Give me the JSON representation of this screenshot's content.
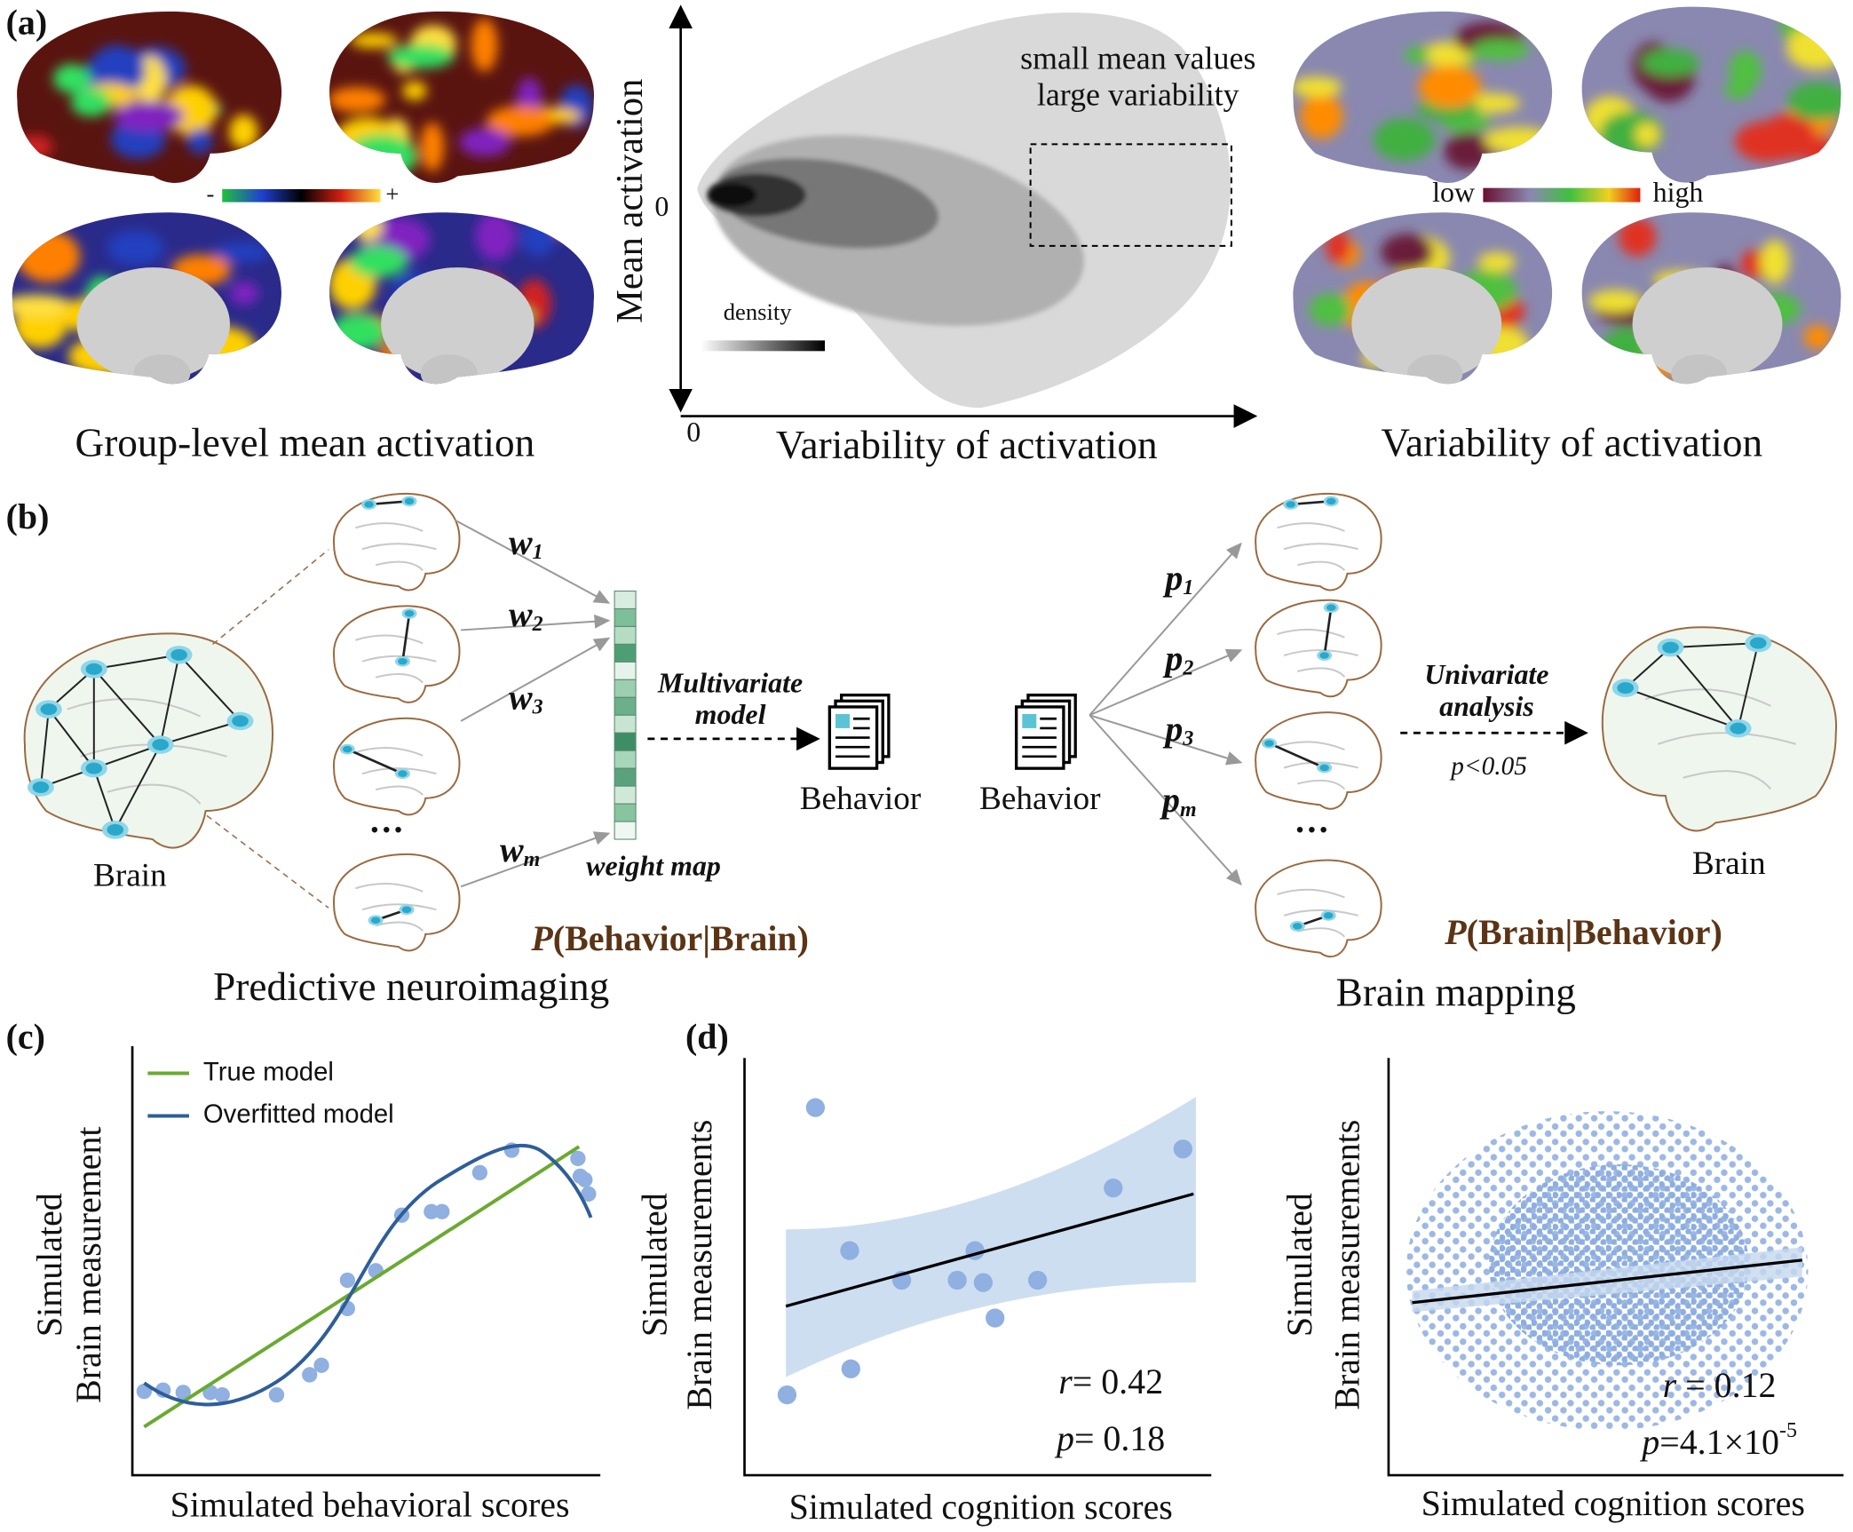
{
  "panel_a": {
    "label": "(a)",
    "mean_map": {
      "caption": "Group-level mean activation",
      "scale_min": "-",
      "scale_max": "+"
    },
    "scatter": {
      "y_label": "Mean activation",
      "x_label": "Variability of activation",
      "y_zero": 0,
      "x_zero": 0,
      "annotation": [
        "small mean values",
        "large variability"
      ],
      "legend": "density"
    },
    "variability_map": {
      "caption": "Variability of activation",
      "scale_min": "low",
      "scale_max": "high"
    }
  },
  "panel_b": {
    "label": "(b)",
    "left": {
      "brain": "Brain",
      "weights": [
        {
          "symbol": "w",
          "sub": "1"
        },
        {
          "symbol": "w",
          "sub": "2"
        },
        {
          "symbol": "w",
          "sub": "3"
        },
        {
          "symbol": "w",
          "sub": "m"
        }
      ],
      "ellipsis": "···",
      "model": [
        "Multivariate",
        "model"
      ],
      "weight_map": "weight map",
      "behavior": "Behavior",
      "formula": {
        "p": "P",
        "args": "(Behavior|Brain)"
      },
      "caption": "Predictive neuroimaging"
    },
    "right": {
      "behavior": "Behavior",
      "weights": [
        {
          "symbol": "p",
          "sub": "1"
        },
        {
          "symbol": "p",
          "sub": "2"
        },
        {
          "symbol": "p",
          "sub": "3"
        },
        {
          "symbol": "p",
          "sub": "m"
        }
      ],
      "ellipsis": "···",
      "analysis": [
        "Univariate",
        "analysis"
      ],
      "threshold": "p<0.05",
      "brain": "Brain",
      "formula": {
        "p": "P",
        "args": "(Brain|Behavior)"
      },
      "caption": "Brain mapping"
    }
  },
  "panel_c": {
    "label": "(c)",
    "legend": [
      "True model",
      "Overfitted model"
    ],
    "y_label": [
      "Simulated",
      "Brain measurement"
    ],
    "x_label": "Simulated behavioral scores"
  },
  "panel_d": {
    "label": "(d)",
    "left": {
      "y_label": [
        "Simulated",
        "Brain measurements"
      ],
      "x_label": "Simulated cognition scores",
      "r_symbol": "r",
      "r_value": "= 0.42",
      "p_symbol": "p",
      "p_value": "= 0.18"
    },
    "right": {
      "y_label": [
        "Simulated",
        "Brain measurements"
      ],
      "x_label": "Simulated cognition scores",
      "r_symbol": "r",
      "r_value": " = 0.12",
      "p_symbol": "p",
      "p_value": "=4.1×10",
      "p_exponent": "-5"
    }
  }
}
